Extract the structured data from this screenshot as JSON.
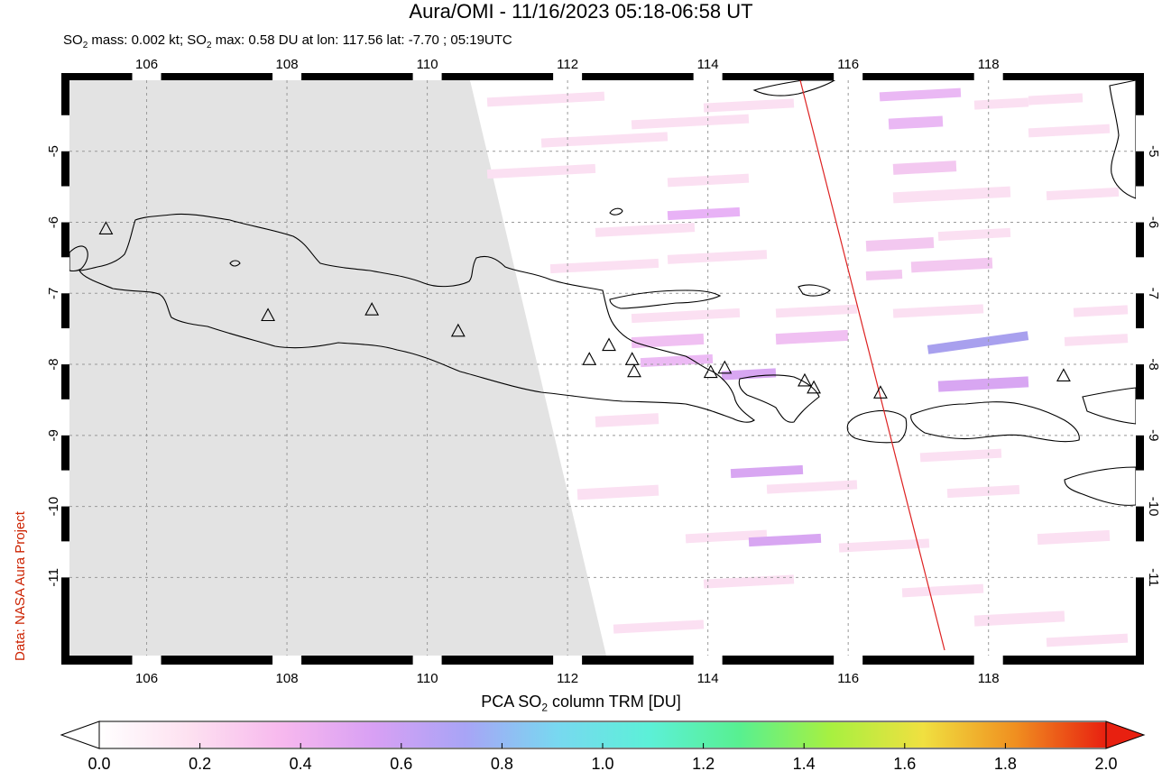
{
  "title": "Aura/OMI - 11/16/2023 05:18-06:58 UT",
  "subtitle": {
    "prefix": "SO",
    "sub": "2",
    "mid": " mass: 0.002 kt; SO",
    "sub2": "2",
    "rest": " max: 0.58 DU at lon: 117.56 lat: -7.70 ; 05:19UTC"
  },
  "credit": "Data: NASA Aura Project",
  "colorbar": {
    "label_prefix": "PCA SO",
    "label_sub": "2",
    "label_rest": " column TRM [DU]",
    "ticks": [
      "0.0",
      "0.2",
      "0.4",
      "0.6",
      "0.8",
      "1.0",
      "1.2",
      "1.4",
      "1.6",
      "1.8",
      "2.0"
    ],
    "min": 0.0,
    "max": 2.0,
    "colors": [
      "#ffffff",
      "#fde0f0",
      "#f7b8ee",
      "#d8a0f4",
      "#a8a4f6",
      "#78d8f0",
      "#5cf0d8",
      "#58f090",
      "#a8f040",
      "#f0e040",
      "#f09020",
      "#e82010"
    ]
  },
  "map": {
    "lon_ticks": [
      "106",
      "108",
      "110",
      "112",
      "114",
      "116",
      "118"
    ],
    "lat_ticks": [
      "-5",
      "-6",
      "-7",
      "-8",
      "-9",
      "-10",
      "-11"
    ],
    "lon_range": [
      104.9,
      120.1
    ],
    "lat_range": [
      -12.1,
      -4.0
    ],
    "no_data_color": "#e3e3e3",
    "swath_edge_color": "#dd2222",
    "volcano_marker": "triangle-icon",
    "volcanoes": [
      {
        "lon": 105.42,
        "lat": -6.1
      },
      {
        "lon": 107.73,
        "lat": -7.32
      },
      {
        "lon": 109.21,
        "lat": -7.24
      },
      {
        "lon": 110.44,
        "lat": -7.54
      },
      {
        "lon": 112.31,
        "lat": -7.94
      },
      {
        "lon": 112.59,
        "lat": -7.74
      },
      {
        "lon": 112.92,
        "lat": -7.94
      },
      {
        "lon": 112.95,
        "lat": -8.11
      },
      {
        "lon": 114.04,
        "lat": -8.12
      },
      {
        "lon": 114.24,
        "lat": -8.06
      },
      {
        "lon": 115.38,
        "lat": -8.24
      },
      {
        "lon": 115.51,
        "lat": -8.34
      },
      {
        "lon": 116.46,
        "lat": -8.41
      },
      {
        "lon": 119.07,
        "lat": -8.17
      }
    ]
  }
}
